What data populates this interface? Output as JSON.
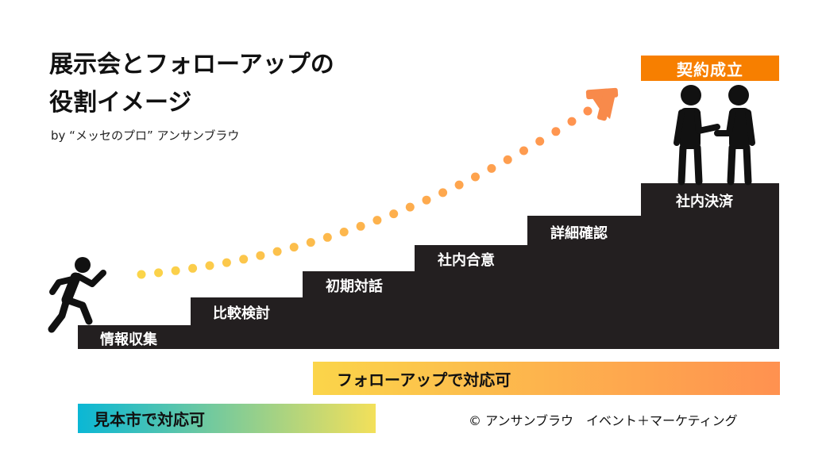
{
  "title": {
    "line1": "展示会とフォローアップの",
    "line2": "役割イメージ"
  },
  "byline": "by “メッセのプロ” アンサンブラウ",
  "goal_badge": "契約成立",
  "steps": [
    {
      "label": "情報収集"
    },
    {
      "label": "比較検討"
    },
    {
      "label": "初期対話"
    },
    {
      "label": "社内合意"
    },
    {
      "label": "詳細確認"
    },
    {
      "label": "社内決済"
    }
  ],
  "bars": {
    "followup": "フォローアップで対応可",
    "sample": "見本市で対応可"
  },
  "copyright": "© アンサンブラウ　イベント＋マーケティング",
  "colors": {
    "stairs": "#231f20",
    "badge": "#f77f00",
    "dot_start": "#fbd54a",
    "dot_end": "#ff9150"
  },
  "icons": [
    "running-person-icon",
    "handshake-icon",
    "arrow-head-icon"
  ]
}
